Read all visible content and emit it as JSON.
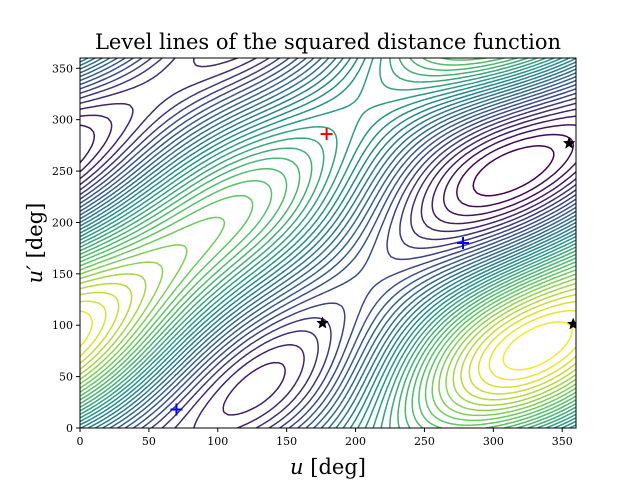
{
  "chart_data": {
    "type": "contour",
    "title": "Level lines of the squared distance function",
    "xlabel": {
      "var": "u",
      "unit": "[deg]"
    },
    "ylabel": {
      "var": "u′",
      "unit": "[deg]"
    },
    "xlim": [
      0,
      360
    ],
    "ylim": [
      0,
      360
    ],
    "xticks": [
      "0",
      "50",
      "100",
      "150",
      "200",
      "250",
      "300",
      "350"
    ],
    "yticks": [
      "0",
      "50",
      "100",
      "150",
      "200",
      "250",
      "300",
      "350"
    ],
    "colormap": [
      "#440154",
      "#3b528b",
      "#21918c",
      "#5ec962",
      "#fde725"
    ],
    "markers": [
      {
        "kind": "plus",
        "color": "#ff0000",
        "x": 179,
        "y": 286
      },
      {
        "kind": "plus",
        "color": "#0000ff",
        "x": 278,
        "y": 180
      },
      {
        "kind": "plus",
        "color": "#0000ff",
        "x": 70,
        "y": 18
      },
      {
        "kind": "star",
        "color": "#000000",
        "x": 176,
        "y": 102
      },
      {
        "kind": "star",
        "color": "#000000",
        "x": 355,
        "y": 277
      },
      {
        "kind": "star",
        "color": "#000000",
        "x": 358,
        "y": 101
      }
    ]
  }
}
